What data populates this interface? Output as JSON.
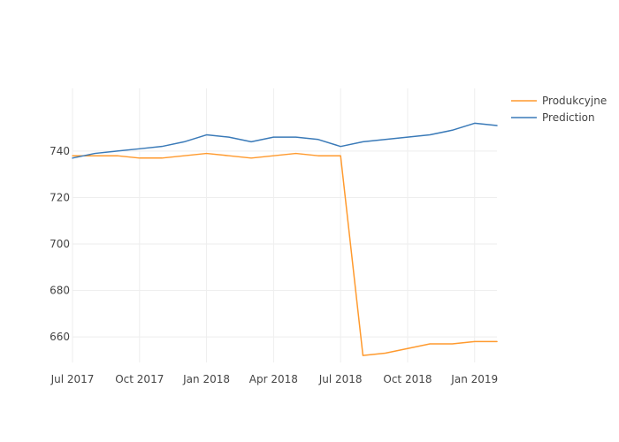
{
  "chart_data": {
    "type": "line",
    "x": [
      "2017-07",
      "2017-08",
      "2017-09",
      "2017-10",
      "2017-11",
      "2017-12",
      "2018-01",
      "2018-02",
      "2018-03",
      "2018-04",
      "2018-05",
      "2018-06",
      "2018-07",
      "2018-08",
      "2018-09",
      "2018-10",
      "2018-11",
      "2018-12",
      "2019-01",
      "2019-02"
    ],
    "x_ticks": [
      {
        "value": "2017-07",
        "label": "Jul 2017"
      },
      {
        "value": "2017-10",
        "label": "Oct 2017"
      },
      {
        "value": "2018-01",
        "label": "Jan 2018"
      },
      {
        "value": "2018-04",
        "label": "Apr 2018"
      },
      {
        "value": "2018-07",
        "label": "Jul 2018"
      },
      {
        "value": "2018-10",
        "label": "Oct 2018"
      },
      {
        "value": "2019-01",
        "label": "Jan 2019"
      }
    ],
    "y_ticks": [
      660,
      680,
      700,
      720,
      740
    ],
    "ylim": [
      649,
      767
    ],
    "grid": true,
    "legend_position": "top-right",
    "series": [
      {
        "name": "Produkcyjne",
        "color": "#ff9a2e",
        "values": [
          738,
          738,
          738,
          737,
          737,
          738,
          739,
          738,
          737,
          738,
          739,
          738,
          738,
          652,
          653,
          655,
          657,
          657,
          658,
          658
        ]
      },
      {
        "name": "Prediction",
        "color": "#3a7ab8",
        "values": [
          737,
          739,
          740,
          741,
          742,
          744,
          747,
          746,
          744,
          746,
          746,
          745,
          742,
          744,
          745,
          746,
          747,
          749,
          752,
          751
        ]
      }
    ]
  }
}
